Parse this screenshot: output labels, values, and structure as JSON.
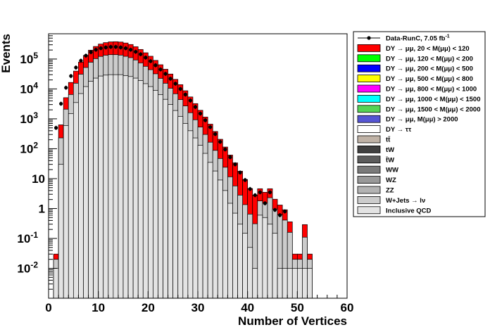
{
  "chart_data": {
    "type": "bar",
    "xlabel": "Number of Vertices",
    "ylabel": "Events",
    "xlim": [
      0,
      60
    ],
    "ylim": [
      0.001,
      700000
    ],
    "yscale": "log",
    "grid": false,
    "legend_position": "right-outside",
    "xticks": [
      0,
      10,
      20,
      30,
      40,
      50,
      60
    ],
    "xtick_labels": [
      "0",
      "10",
      "20",
      "30",
      "40",
      "50",
      "60"
    ],
    "yticks": [
      0.01,
      0.1,
      1,
      10,
      100,
      1000,
      10000,
      100000
    ],
    "ytick_labels": [
      {
        "base": "10",
        "exp": "-2"
      },
      {
        "base": "10",
        "exp": "-1"
      },
      {
        "base": "1",
        "exp": ""
      },
      {
        "base": "10",
        "exp": ""
      },
      {
        "base": "10",
        "exp": "2"
      },
      {
        "base": "10",
        "exp": "3"
      },
      {
        "base": "10",
        "exp": "4"
      },
      {
        "base": "10",
        "exp": "5"
      }
    ],
    "x_bins": [
      1,
      2,
      3,
      4,
      5,
      6,
      7,
      8,
      9,
      10,
      11,
      12,
      13,
      14,
      15,
      16,
      17,
      18,
      19,
      20,
      21,
      22,
      23,
      24,
      25,
      26,
      27,
      28,
      29,
      30,
      31,
      32,
      33,
      34,
      35,
      36,
      37,
      38,
      39,
      40,
      41,
      42,
      43,
      44,
      45,
      46,
      47,
      48,
      49,
      50,
      51,
      52
    ],
    "series": [
      {
        "name": "Inclusive QCD",
        "color": "#e3e3e3",
        "values": [
          0.01,
          30,
          600,
          1500,
          3500,
          7000,
          12000,
          18000,
          23000,
          27000,
          29000,
          30000,
          30000,
          30000,
          28000,
          26000,
          23000,
          19000,
          15000,
          12000,
          9000,
          6500,
          4500,
          3000,
          1900,
          1200,
          700,
          400,
          230,
          130,
          70,
          35,
          18,
          9,
          4,
          1.5,
          0.7,
          0.3,
          0.15,
          0.05,
          0.01,
          0.6,
          0.5,
          0.3,
          0.15,
          0.01,
          0.01,
          0.01,
          0.01,
          0.01,
          0.01,
          0.01
        ]
      },
      {
        "name": "W+Jets → lν",
        "color": "#cccccc",
        "values": [
          0.01,
          200,
          1500,
          5000,
          12000,
          24000,
          40000,
          60000,
          80000,
          95000,
          105000,
          110000,
          110000,
          105000,
          95000,
          85000,
          70000,
          55000,
          42000,
          32000,
          23000,
          16000,
          11000,
          7500,
          5000,
          3200,
          2000,
          1200,
          700,
          400,
          230,
          130,
          70,
          38,
          20,
          10,
          5,
          2.5,
          1.2,
          0.6,
          0.3,
          1.2,
          1,
          2,
          0.8,
          0.6,
          0.4,
          0.15,
          0.01,
          0.01,
          0.1,
          0.01
        ]
      },
      {
        "name": "DY → μμ, 20 < M(μμ) <  120",
        "color": "#ff0000",
        "values": [
          0.01,
          400,
          3000,
          10000,
          24000,
          48000,
          80000,
          120000,
          160000,
          195000,
          220000,
          235000,
          240000,
          235000,
          220000,
          195000,
          165000,
          135000,
          105000,
          80000,
          58000,
          42000,
          30000,
          21000,
          14000,
          9500,
          6000,
          3800,
          2300,
          1400,
          850,
          500,
          290,
          160,
          90,
          50,
          28,
          15,
          8,
          4,
          2.5,
          2.8,
          2,
          2.3,
          1.1,
          0.7,
          0.5,
          0.2,
          0.01,
          0.01,
          0.18,
          0.01
        ]
      }
    ],
    "data_series": {
      "name": "Data-RunC, 7.05 fb⁻¹",
      "x": [
        1,
        2,
        3,
        4,
        5,
        6,
        7,
        8,
        9,
        10,
        11,
        12,
        13,
        14,
        15,
        16,
        17,
        18,
        19,
        20,
        21,
        22,
        23,
        24,
        25,
        26,
        27,
        28,
        29,
        30,
        31,
        32,
        33,
        34,
        35,
        36,
        37,
        38,
        39,
        40,
        41,
        42,
        43,
        44,
        45,
        46,
        47
      ],
      "y": [
        500,
        3200,
        11000,
        27000,
        52000,
        88000,
        130000,
        170000,
        205000,
        230000,
        245000,
        255000,
        255000,
        245000,
        230000,
        205000,
        175000,
        145000,
        112000,
        85000,
        62000,
        45000,
        32000,
        22000,
        15000,
        10000,
        6500,
        4100,
        2500,
        1500,
        900,
        530,
        310,
        170,
        95,
        52,
        30,
        16,
        9,
        4.5,
        2.8,
        3.5,
        1.5,
        3.5,
        0.9,
        0.6,
        0.8
      ]
    },
    "legend": [
      {
        "label_parts": [
          {
            "t": "Data-RunC, 7.05 fb"
          },
          {
            "t": "-1",
            "sup": true
          }
        ],
        "kind": "marker",
        "color": "#000000"
      },
      {
        "label_parts": [
          {
            "t": "DY → μμ, 20 < M(μμ) <  120"
          }
        ],
        "kind": "box",
        "color": "#ff0000"
      },
      {
        "label_parts": [
          {
            "t": "DY → μμ, 120 < M(μμ) <  200"
          }
        ],
        "kind": "box",
        "color": "#00ff00"
      },
      {
        "label_parts": [
          {
            "t": "DY → μμ, 200 < M(μμ) <  500"
          }
        ],
        "kind": "box",
        "color": "#0000ff"
      },
      {
        "label_parts": [
          {
            "t": "DY → μμ, 500 < M(μμ) <  800"
          }
        ],
        "kind": "box",
        "color": "#ffff00"
      },
      {
        "label_parts": [
          {
            "t": "DY → μμ, 800 < M(μμ) < 1000"
          }
        ],
        "kind": "box",
        "color": "#ff00ff"
      },
      {
        "label_parts": [
          {
            "t": "DY → μμ, 1000 < M(μμ) < 1500"
          }
        ],
        "kind": "box",
        "color": "#00ffff"
      },
      {
        "label_parts": [
          {
            "t": "DY → μμ, 1500 < M(μμ) < 2000"
          }
        ],
        "kind": "box",
        "color": "#55d455"
      },
      {
        "label_parts": [
          {
            "t": "DY → μμ, M(μμ) > 2000"
          }
        ],
        "kind": "box",
        "color": "#5555d4"
      },
      {
        "label_parts": [
          {
            "t": "DY → ττ"
          }
        ],
        "kind": "box",
        "color": "#ffffff"
      },
      {
        "label_parts": [
          {
            "t": "tt̄"
          }
        ],
        "kind": "box",
        "color": "#bfb2a6"
      },
      {
        "label_parts": [
          {
            "t": "tW"
          }
        ],
        "kind": "box",
        "color": "#404040"
      },
      {
        "label_parts": [
          {
            "t": "t̄W"
          }
        ],
        "kind": "box",
        "color": "#5c5c5c"
      },
      {
        "label_parts": [
          {
            "t": "WW"
          }
        ],
        "kind": "box",
        "color": "#7a7a7a"
      },
      {
        "label_parts": [
          {
            "t": "WZ"
          }
        ],
        "kind": "box",
        "color": "#999999"
      },
      {
        "label_parts": [
          {
            "t": "ZZ"
          }
        ],
        "kind": "box",
        "color": "#b3b3b3"
      },
      {
        "label_parts": [
          {
            "t": "W+Jets → lν"
          }
        ],
        "kind": "box",
        "color": "#cccccc"
      },
      {
        "label_parts": [
          {
            "t": "Inclusive QCD"
          }
        ],
        "kind": "box",
        "color": "#e3e3e3"
      }
    ]
  }
}
